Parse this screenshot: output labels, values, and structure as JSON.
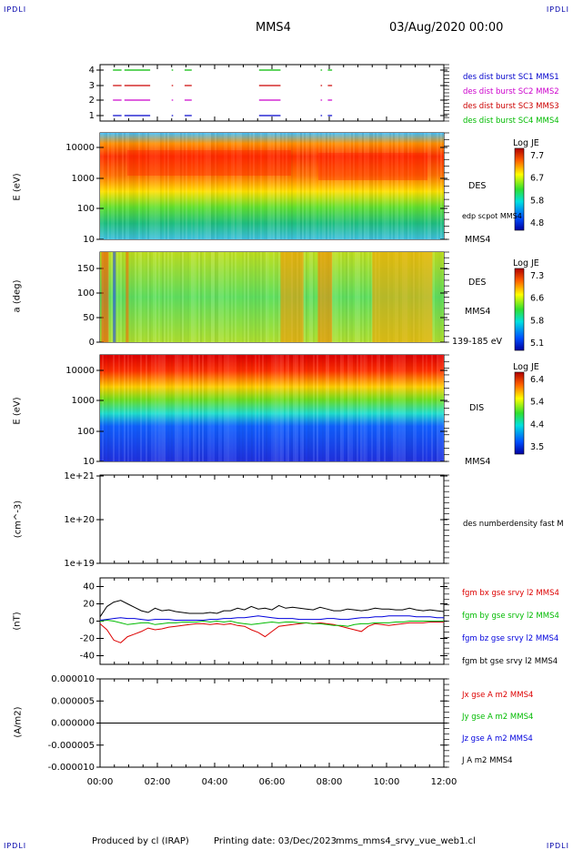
{
  "header": {
    "corner_left_top": "IPDLI",
    "corner_right_top": "IPDLI",
    "corner_left_bottom": "IPDLI",
    "corner_right_bottom": "IPDLI",
    "spacecraft": "MMS4",
    "datetime": "03/Aug/2020 00:00"
  },
  "footer": {
    "produced": "Produced by cl (IRAP)",
    "printing": "Printing date: 03/Dec/2023",
    "filename": "mms_mms4_srvy_vue_web1.cl"
  },
  "chart_data": [
    {
      "type": "bar",
      "name": "burst availability",
      "yticks": [
        "1",
        "2",
        "3",
        "4"
      ],
      "legend": [
        {
          "label": "des dist burst SC1 MMS1",
          "color": "#0000cc"
        },
        {
          "label": "des dist burst SC2 MMS2",
          "color": "#cc00cc"
        },
        {
          "label": "des dist burst SC3 MMS3",
          "color": "#cc0000"
        },
        {
          "label": "des dist burst SC4 MMS4",
          "color": "#00bb00"
        }
      ],
      "intervals_hours": [
        [
          0.45,
          0.75
        ],
        [
          0.85,
          1.75
        ],
        [
          2.5,
          2.55
        ],
        [
          2.95,
          3.2
        ],
        [
          5.55,
          6.3
        ],
        [
          7.7,
          7.75
        ],
        [
          7.95,
          8.1
        ]
      ]
    },
    {
      "type": "heatmap",
      "ylabel": "E (eV)",
      "yticks": [
        "10",
        "100",
        "1000",
        "10000"
      ],
      "instrument": "DES",
      "note": "edp scpot MMS4",
      "sc_label": "MMS4",
      "colorbar": {
        "title": "Log JE",
        "ticks": [
          "7.7",
          "6.7",
          "5.8",
          "4.8"
        ]
      }
    },
    {
      "type": "heatmap",
      "ylabel": "a (deg)",
      "yticks": [
        "0",
        "50",
        "100",
        "150"
      ],
      "instrument": "DES",
      "sc_label": "MMS4",
      "energy_range": "139-185 eV",
      "colorbar": {
        "title": "Log JE",
        "ticks": [
          "7.3",
          "6.6",
          "5.8",
          "5.1"
        ]
      }
    },
    {
      "type": "heatmap",
      "ylabel": "E (eV)",
      "yticks": [
        "10",
        "100",
        "1000",
        "10000"
      ],
      "instrument": "DIS",
      "sc_label": "MMS4",
      "colorbar": {
        "title": "Log JE",
        "ticks": [
          "6.4",
          "5.4",
          "4.4",
          "3.5"
        ]
      }
    },
    {
      "type": "line",
      "ylabel": "(cm^-3)",
      "yticks": [
        "1e+19",
        "1e+20",
        "1e+21"
      ],
      "legend": [
        {
          "label": "des numberdensity fast M",
          "color": "#000000"
        }
      ]
    },
    {
      "type": "line",
      "ylabel": "(nT)",
      "yticks": [
        "-40",
        "-20",
        "0",
        "20",
        "40"
      ],
      "ylim": [
        -50,
        50
      ],
      "legend": [
        {
          "label": "fgm bx gse srvy l2 MMS4",
          "color": "#dd0000"
        },
        {
          "label": "fgm by gse srvy l2 MMS4",
          "color": "#00bb00"
        },
        {
          "label": "fgm bz gse srvy l2 MMS4",
          "color": "#0000dd"
        },
        {
          "label": "fgm bt gse srvy l2 MMS4",
          "color": "#000000"
        }
      ],
      "series": [
        {
          "name": "fgm bt gse srvy l2 MMS4",
          "values": [
            5,
            17,
            22,
            24,
            20,
            16,
            12,
            10,
            15,
            12,
            13,
            11,
            10,
            9,
            9,
            9,
            10,
            9,
            12,
            12,
            15,
            13,
            17,
            14,
            15,
            13,
            18,
            15,
            16,
            15,
            14,
            13,
            16,
            14,
            12,
            12,
            14,
            13,
            12,
            13,
            15,
            14,
            14,
            13,
            13,
            15,
            13,
            12,
            13,
            12,
            11
          ]
        },
        {
          "name": "fgm bx gse srvy l2 MMS4",
          "values": [
            -3,
            -10,
            -22,
            -25,
            -18,
            -15,
            -12,
            -8,
            -10,
            -9,
            -7,
            -6,
            -5,
            -4,
            -3,
            -3,
            -4,
            -3,
            -4,
            -3,
            -5,
            -6,
            -10,
            -13,
            -18,
            -12,
            -6,
            -5,
            -4,
            -3,
            -2,
            -3,
            -2,
            -3,
            -4,
            -6,
            -8,
            -10,
            -12,
            -6,
            -3,
            -4,
            -5,
            -4,
            -3,
            -2,
            -2,
            -2,
            -1,
            -1,
            -1
          ]
        },
        {
          "name": "fgm by gse srvy l2 MMS4",
          "values": [
            0,
            1,
            0,
            -2,
            -4,
            -3,
            -2,
            -2,
            -4,
            -3,
            -2,
            -2,
            -1,
            -1,
            -1,
            0,
            -1,
            0,
            -1,
            0,
            -2,
            -3,
            -4,
            -3,
            -2,
            -1,
            -2,
            -1,
            -1,
            -2,
            -2,
            -3,
            -3,
            -4,
            -5,
            -5,
            -6,
            -4,
            -3,
            -3,
            -2,
            -2,
            -2,
            -1,
            -1,
            0,
            0,
            0,
            0,
            0,
            0
          ]
        },
        {
          "name": "fgm bz gse srvy l2 MMS4",
          "values": [
            1,
            2,
            3,
            4,
            3,
            3,
            2,
            1,
            2,
            2,
            2,
            1,
            1,
            1,
            1,
            1,
            2,
            2,
            3,
            3,
            4,
            4,
            5,
            6,
            5,
            4,
            3,
            3,
            3,
            2,
            2,
            2,
            2,
            3,
            3,
            2,
            2,
            3,
            4,
            4,
            5,
            5,
            6,
            6,
            6,
            6,
            5,
            5,
            5,
            4,
            4
          ]
        }
      ]
    },
    {
      "type": "line",
      "ylabel": "(A/m2)",
      "yticks": [
        "-0.000010",
        "-0.000005",
        "0.000000",
        "0.000005",
        "0.000010"
      ],
      "ylim": [
        -1e-05,
        1e-05
      ],
      "legend": [
        {
          "label": "Jx gse A m2 MMS4",
          "color": "#dd0000"
        },
        {
          "label": "Jy gse A m2 MMS4",
          "color": "#00bb00"
        },
        {
          "label": "Jz gse A m2 MMS4",
          "color": "#0000dd"
        },
        {
          "label": "J A m2 MMS4",
          "color": "#000000"
        }
      ]
    }
  ],
  "time_axis": {
    "ticks": [
      "00:00",
      "02:00",
      "04:00",
      "06:00",
      "08:00",
      "10:00",
      "12:00"
    ],
    "range_hours": [
      0,
      12
    ]
  },
  "palette": {
    "axis": "#000000",
    "title_corner": "#0000aa"
  }
}
